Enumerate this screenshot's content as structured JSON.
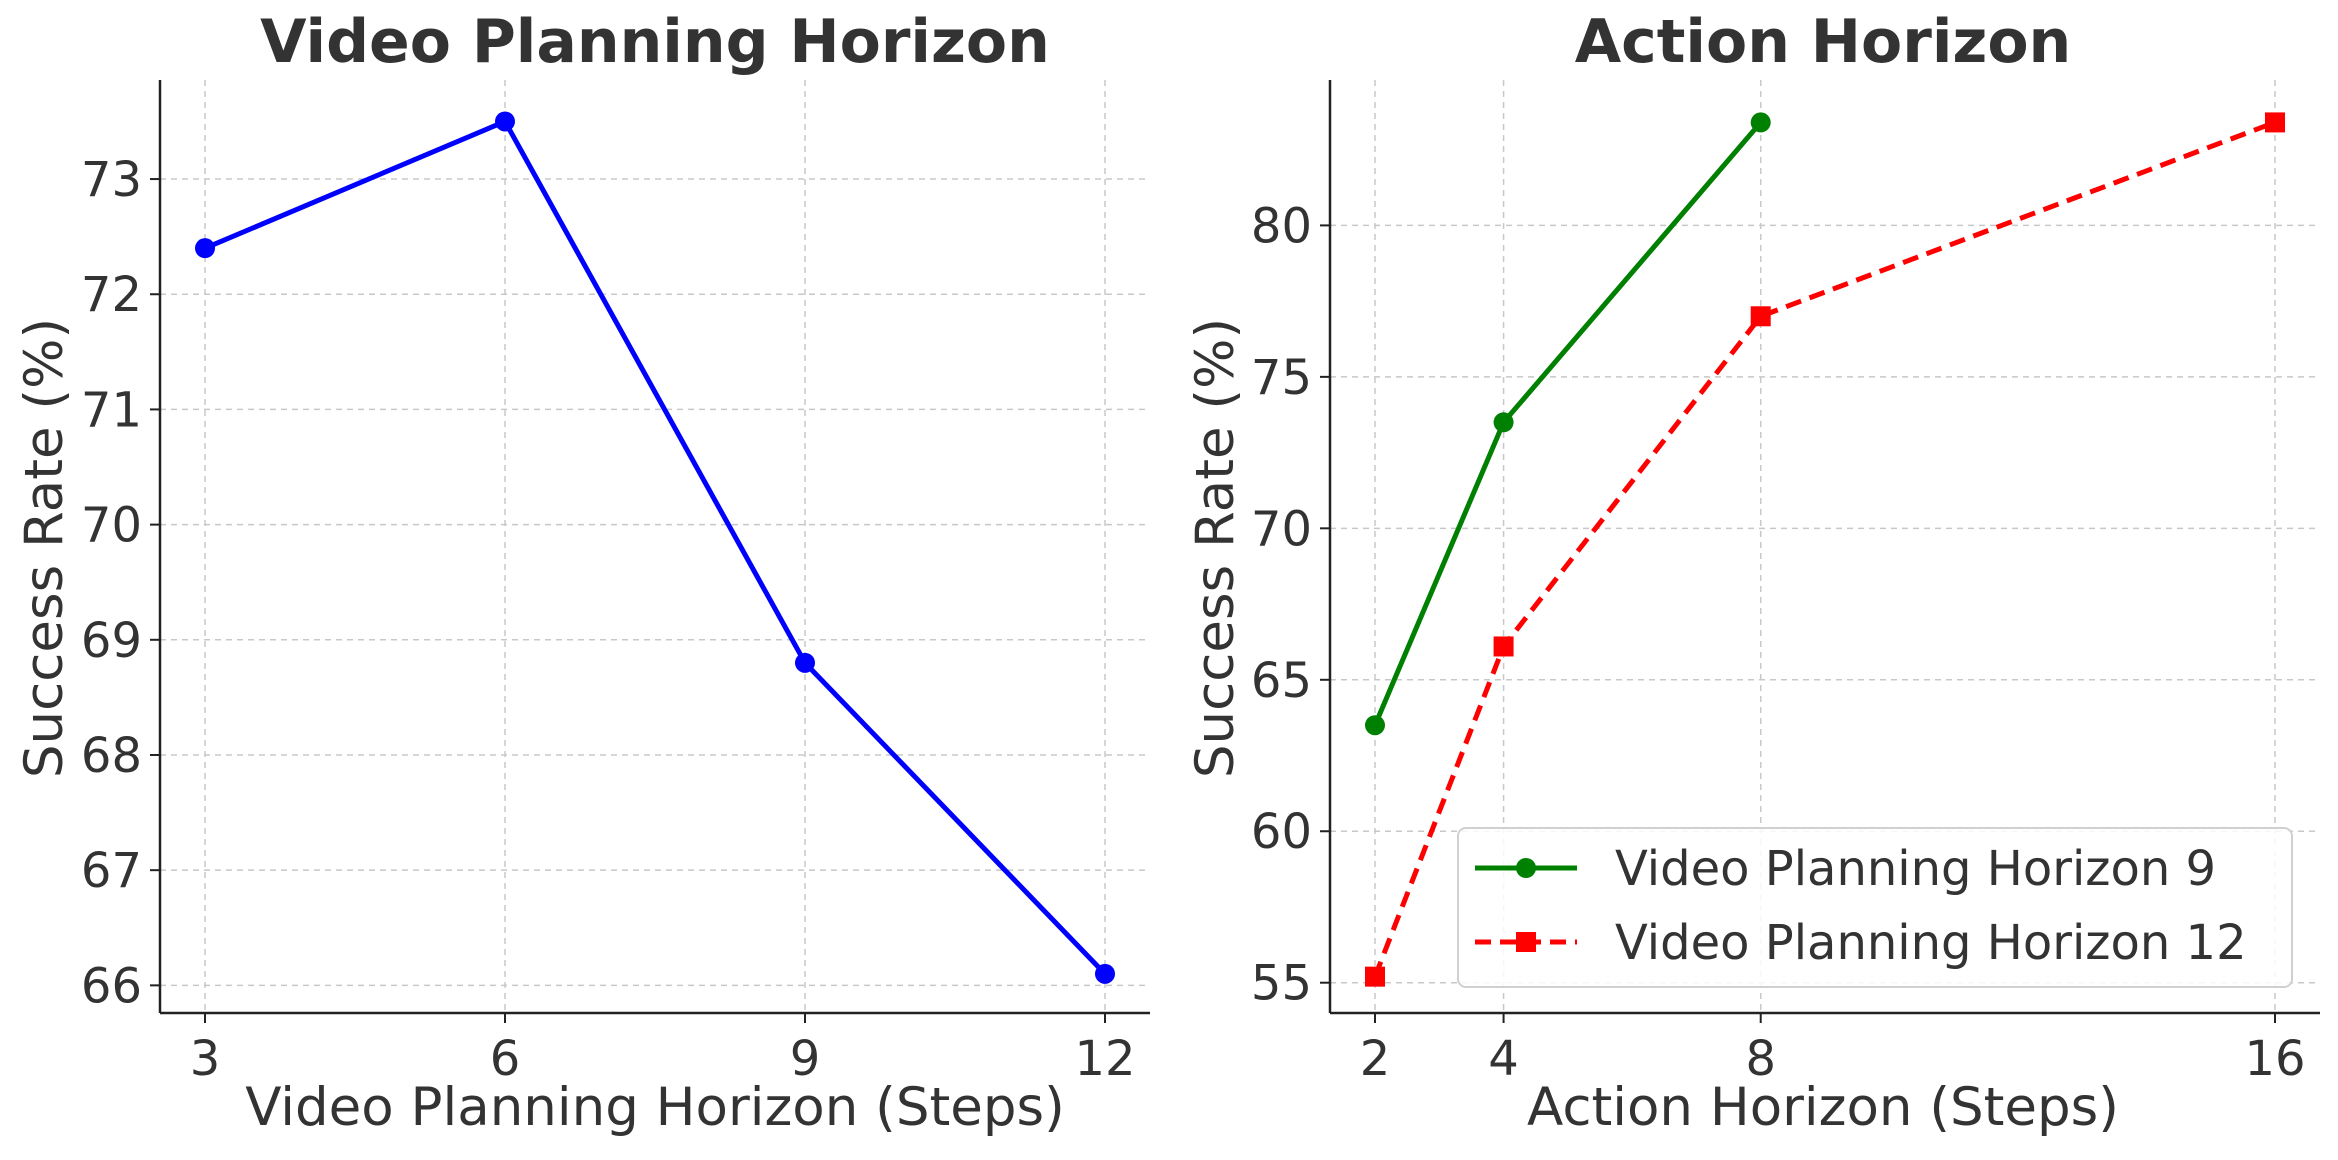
{
  "chart_data": [
    {
      "type": "line",
      "title": "Video Planning Horizon",
      "xlabel": "Video Planning Horizon (Steps)",
      "ylabel": "Success Rate (%)",
      "x": [
        3,
        6,
        9,
        12
      ],
      "xticks": [
        3,
        6,
        9,
        12
      ],
      "yticks": [
        66,
        67,
        68,
        69,
        70,
        71,
        72,
        73
      ],
      "xlim": [
        2.55,
        12.45
      ],
      "ylim": [
        65.76,
        73.86
      ],
      "grid": true,
      "legend": null,
      "series": [
        {
          "values": [
            72.4,
            73.5,
            68.8,
            66.1
          ],
          "color": "#0000ff",
          "marker": "circle",
          "linestyle": "solid"
        }
      ]
    },
    {
      "type": "line",
      "title": "Action Horizon",
      "xlabel": "Action Horizon (Steps)",
      "ylabel": "Success Rate (%)",
      "xticks": [
        2,
        4,
        8,
        16
      ],
      "yticks": [
        55,
        60,
        65,
        70,
        75,
        80
      ],
      "xlim": [
        1.3,
        16.7
      ],
      "ylim": [
        54.0,
        84.8
      ],
      "grid": true,
      "legend": "lower-right",
      "series": [
        {
          "name": "Video Planning Horizon 9",
          "x": [
            2,
            4,
            8
          ],
          "values": [
            63.5,
            73.5,
            83.4
          ],
          "color": "#008000",
          "marker": "circle",
          "linestyle": "solid"
        },
        {
          "name": "Video Planning Horizon 12",
          "x": [
            2,
            4,
            8,
            16
          ],
          "values": [
            55.2,
            66.1,
            77.0,
            83.4
          ],
          "color": "#ff0000",
          "marker": "square",
          "linestyle": "dashed"
        }
      ]
    }
  ]
}
